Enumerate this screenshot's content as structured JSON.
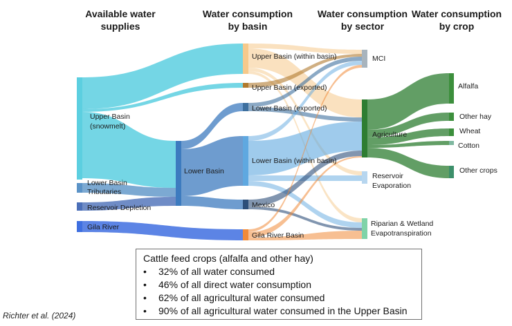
{
  "headers": {
    "supplies": [
      "Available water",
      "supplies"
    ],
    "basin": [
      "Water consumption",
      "by basin"
    ],
    "sector": [
      "Water consumption",
      "by sector"
    ],
    "crop": [
      "Water consumption",
      "by crop"
    ]
  },
  "nodes": {
    "upper_basin_snowmelt": [
      "Upper Basin",
      "(snowmelt)"
    ],
    "lower_basin_tributaries": [
      "Lower Basin",
      "Tributaries"
    ],
    "reservoir_depletion": "Reservoir Depletion",
    "gila_river": "Gila River",
    "lower_basin": "Lower Basin",
    "upper_basin_within": "Upper Basin (within basin)",
    "upper_basin_exported": "Upper Basin (exported)",
    "lower_basin_exported": "Lower Basin (exported)",
    "lower_basin_within": "Lower Basin (within basin)",
    "mexico": "Mexico",
    "gila_river_basin": "Gila River Basin",
    "mci": "MCI",
    "agriculture": "Agriculture",
    "reservoir_evaporation": [
      "Reservoir",
      "Evaporation"
    ],
    "riparian_wetland": [
      "Riparian & Wetland",
      "Evapotranspiration"
    ],
    "alfalfa": "Alfalfa",
    "other_hay": "Other hay",
    "wheat": "Wheat",
    "cotton": "Cotton",
    "other_crops": "Other crops"
  },
  "colors": {
    "upper_basin_snowmelt": "#5ccfe0",
    "lower_basin_tributaries": "#5b93c7",
    "reservoir_depletion": "#4b6fb8",
    "gila_river": "#3f6fe0",
    "lower_basin": "#3d7bbf",
    "upper_basin_within": "#f6c98b",
    "upper_basin_exported": "#b07a2e",
    "lower_basin_exported": "#3d6f9e",
    "lower_basin_within": "#5fa8e0",
    "mexico": "#2d4f7a",
    "gila_river_basin": "#f08a38",
    "mci": "#a8b4bd",
    "agriculture": "#2e7d32",
    "reservoir_evaporation": "#b7d6ef",
    "riparian_wetland": "#7fd3a8",
    "alfalfa": "#3c8f3c",
    "other_hay": "#3c8f3c",
    "wheat": "#3c8f3c",
    "cotton": "#7fb8a0",
    "other_crops": "#3c8f6a"
  },
  "note": {
    "title": "Cattle feed crops (alfalfa and other hay)",
    "bullet": "•",
    "items": [
      "32% of all water consumed",
      "46% of all direct water consumption",
      "62% of all agricultural water consumed",
      "90% of all agricultural water consumed in the Upper Basin"
    ]
  },
  "citation": "Richter et al. (2024)"
}
